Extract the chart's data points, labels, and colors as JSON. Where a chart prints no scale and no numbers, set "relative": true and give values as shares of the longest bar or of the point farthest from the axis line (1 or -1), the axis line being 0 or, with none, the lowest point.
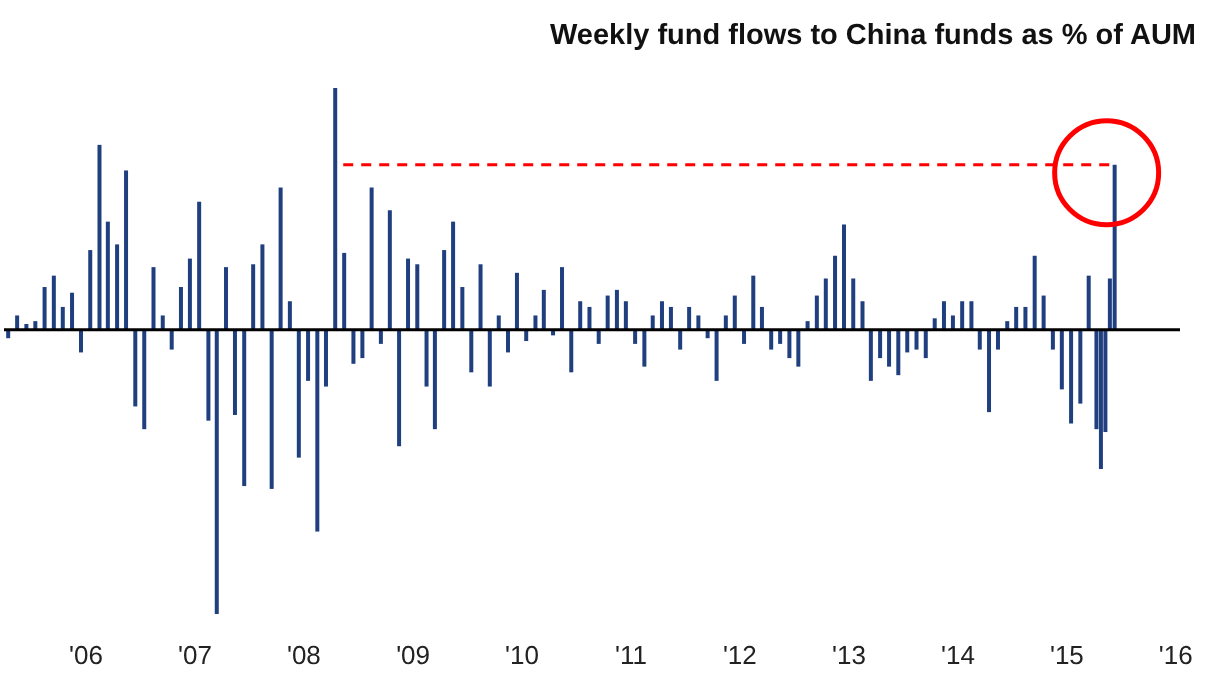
{
  "chart_data": {
    "type": "bar",
    "title": "Weekly fund flows  to China funds as % of AUM",
    "relative": true,
    "color": "#1f3f7f",
    "x": [
      "2005-04-15",
      "2005-05-15",
      "2005-06-15",
      "2005-07-15",
      "2005-08-15",
      "2005-09-15",
      "2005-10-15",
      "2005-11-15",
      "2005-12-15",
      "2006-01-15",
      "2006-02-15",
      "2006-03-15",
      "2006-04-15",
      "2006-05-15",
      "2006-06-15",
      "2006-07-15",
      "2006-08-15",
      "2006-09-15",
      "2006-10-15",
      "2006-11-15",
      "2006-12-15",
      "2007-01-15",
      "2007-02-15",
      "2007-03-15",
      "2007-04-15",
      "2007-05-15",
      "2007-06-15",
      "2007-07-15",
      "2007-08-15",
      "2007-09-15",
      "2007-10-15",
      "2007-11-15",
      "2007-12-15",
      "2008-01-15",
      "2008-02-15",
      "2008-03-15",
      "2008-04-15",
      "2008-05-15",
      "2008-06-15",
      "2008-07-15",
      "2008-08-15",
      "2008-09-15",
      "2008-10-15",
      "2008-11-15",
      "2008-12-15",
      "2009-01-15",
      "2009-02-15",
      "2009-03-15",
      "2009-04-15",
      "2009-05-15",
      "2009-06-15",
      "2009-07-15",
      "2009-08-15",
      "2009-09-15",
      "2009-10-15",
      "2009-11-15",
      "2009-12-15",
      "2010-01-15",
      "2010-02-15",
      "2010-03-15",
      "2010-04-15",
      "2010-05-15",
      "2010-06-15",
      "2010-07-15",
      "2010-08-15",
      "2010-09-15",
      "2010-10-15",
      "2010-11-15",
      "2010-12-15",
      "2011-01-15",
      "2011-02-15",
      "2011-03-15",
      "2011-04-15",
      "2011-05-15",
      "2011-06-15",
      "2011-07-15",
      "2011-08-15",
      "2011-09-15",
      "2011-10-15",
      "2011-11-15",
      "2011-12-15",
      "2012-01-15",
      "2012-02-15",
      "2012-03-15",
      "2012-04-15",
      "2012-05-15",
      "2012-06-15",
      "2012-07-15",
      "2012-08-15",
      "2012-09-15",
      "2012-10-15",
      "2012-11-15",
      "2012-12-15",
      "2013-01-15",
      "2013-02-15",
      "2013-03-15",
      "2013-04-15",
      "2013-05-15",
      "2013-06-15",
      "2013-07-15",
      "2013-08-15",
      "2013-09-15",
      "2013-10-15",
      "2013-11-15",
      "2013-12-15",
      "2014-01-15",
      "2014-02-15",
      "2014-03-15",
      "2014-04-15",
      "2014-05-15",
      "2014-06-15",
      "2014-07-15",
      "2014-08-15",
      "2014-09-15",
      "2014-10-15",
      "2014-11-15",
      "2014-12-15",
      "2015-01-15",
      "2015-02-15",
      "2015-03-15",
      "2015-04-10",
      "2015-04-25",
      "2015-05-10",
      "2015-05-25",
      "2015-06-10"
    ],
    "values": [
      -0.03,
      0.05,
      0.02,
      0.03,
      0.15,
      0.19,
      0.08,
      0.13,
      -0.08,
      0.28,
      0.65,
      0.38,
      0.3,
      0.56,
      -0.27,
      -0.35,
      0.22,
      0.05,
      -0.07,
      0.15,
      0.25,
      0.45,
      -0.32,
      -1,
      0.22,
      -0.3,
      -0.55,
      0.23,
      0.3,
      -0.56,
      0.5,
      0.1,
      -0.45,
      -0.18,
      -0.71,
      -0.2,
      0.85,
      0.27,
      -0.12,
      -0.1,
      0.5,
      -0.05,
      0.42,
      -0.41,
      0.25,
      0.23,
      -0.2,
      -0.35,
      0.28,
      0.38,
      0.15,
      -0.15,
      0.23,
      -0.2,
      0.05,
      -0.08,
      0.2,
      -0.04,
      0.05,
      0.14,
      -0.02,
      0.22,
      -0.15,
      0.1,
      0.08,
      -0.05,
      0.12,
      0.14,
      0.1,
      -0.05,
      -0.13,
      0.05,
      0.1,
      0.08,
      -0.07,
      0.08,
      0.05,
      -0.03,
      -0.18,
      0.05,
      0.12,
      -0.05,
      0.19,
      0.08,
      -0.07,
      -0.05,
      -0.1,
      -0.13,
      0.03,
      0.12,
      0.18,
      0.26,
      0.37,
      0.18,
      0.1,
      -0.18,
      -0.1,
      -0.13,
      -0.16,
      -0.08,
      -0.07,
      -0.1,
      0.04,
      0.1,
      0.05,
      0.1,
      0.1,
      -0.07,
      -0.29,
      -0.07,
      0.03,
      0.08,
      0.08,
      0.26,
      0.12,
      -0.07,
      -0.21,
      -0.33,
      -0.26,
      0.19,
      -0.35,
      -0.49,
      -0.36,
      0.18,
      0.58
    ],
    "xlim": [
      "2005-04-01",
      "2016-01-15"
    ],
    "xticks": [
      {
        "value": "2006-01-01",
        "label": "'06"
      },
      {
        "value": "2007-01-01",
        "label": "'07"
      },
      {
        "value": "2008-01-01",
        "label": "'08"
      },
      {
        "value": "2009-01-01",
        "label": "'09"
      },
      {
        "value": "2010-01-01",
        "label": "'10"
      },
      {
        "value": "2011-01-01",
        "label": "'11"
      },
      {
        "value": "2012-01-01",
        "label": "'12"
      },
      {
        "value": "2013-01-01",
        "label": "'13"
      },
      {
        "value": "2014-01-01",
        "label": "'14"
      },
      {
        "value": "2015-01-01",
        "label": "'15"
      },
      {
        "value": "2016-01-01",
        "label": "'16"
      }
    ],
    "ref_lines": [
      {
        "axis": "y",
        "value": 0.58,
        "color": "#ff0000",
        "line_style": "dashed"
      }
    ]
  }
}
